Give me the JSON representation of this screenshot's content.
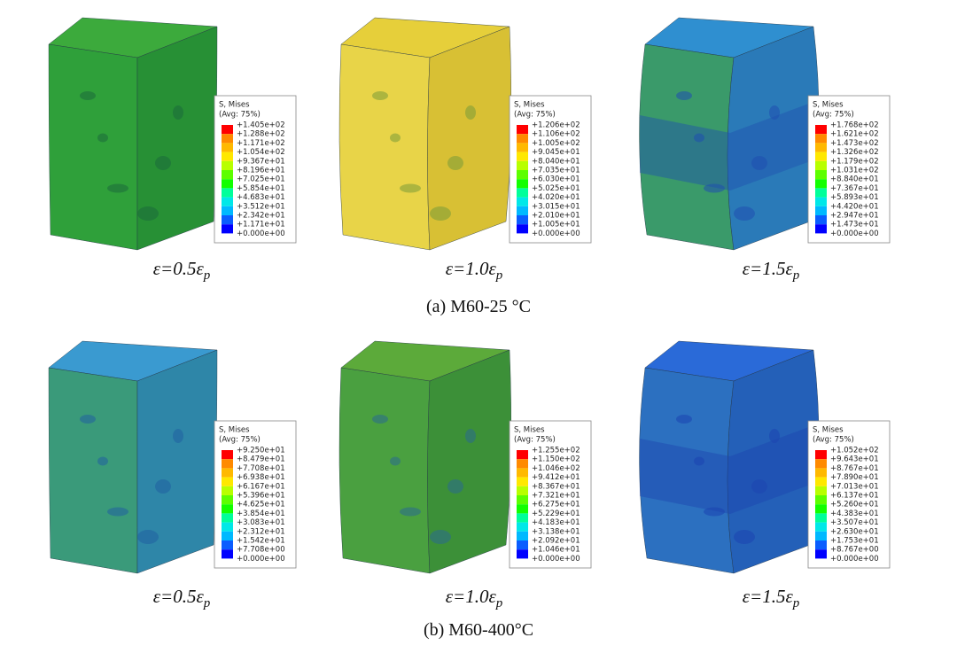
{
  "rows": [
    {
      "caption": "(a) M60-25 °C",
      "panels": [
        {
          "label": "ε=0.5ε",
          "subscript": "p",
          "legend_title": "S, Mises",
          "legend_subtitle": "(Avg: 75%)",
          "levels": [
            "+1.405e+02",
            "+1.288e+02",
            "+1.171e+02",
            "+1.054e+02",
            "+9.367e+01",
            "+8.196e+01",
            "+7.025e+01",
            "+5.854e+01",
            "+4.683e+01",
            "+3.512e+01",
            "+2.342e+01",
            "+1.171e+01",
            "+0.000e+00"
          ]
        },
        {
          "label": "ε=1.0ε",
          "subscript": "p",
          "legend_title": "S, Mises",
          "legend_subtitle": "(Avg: 75%)",
          "levels": [
            "+1.206e+02",
            "+1.106e+02",
            "+1.005e+02",
            "+9.045e+01",
            "+8.040e+01",
            "+7.035e+01",
            "+6.030e+01",
            "+5.025e+01",
            "+4.020e+01",
            "+3.015e+01",
            "+2.010e+01",
            "+1.005e+01",
            "+0.000e+00"
          ]
        },
        {
          "label": "ε=1.5ε",
          "subscript": "p",
          "legend_title": "S, Mises",
          "legend_subtitle": "(Avg: 75%)",
          "levels": [
            "+1.768e+02",
            "+1.621e+02",
            "+1.473e+02",
            "+1.326e+02",
            "+1.179e+02",
            "+1.031e+02",
            "+8.840e+01",
            "+7.367e+01",
            "+5.893e+01",
            "+4.420e+01",
            "+2.947e+01",
            "+1.473e+01",
            "+0.000e+00"
          ]
        }
      ]
    },
    {
      "caption": "(b) M60-400°C",
      "panels": [
        {
          "label": "ε=0.5ε",
          "subscript": "p",
          "legend_title": "S, Mises",
          "legend_subtitle": "(Avg: 75%)",
          "levels": [
            "+9.250e+01",
            "+8.479e+01",
            "+7.708e+01",
            "+6.938e+01",
            "+6.167e+01",
            "+5.396e+01",
            "+4.625e+01",
            "+3.854e+01",
            "+3.083e+01",
            "+2.312e+01",
            "+1.542e+01",
            "+7.708e+00",
            "+0.000e+00"
          ]
        },
        {
          "label": "ε=1.0ε",
          "subscript": "p",
          "legend_title": "S, Mises",
          "legend_subtitle": "(Avg: 75%)",
          "levels": [
            "+1.255e+02",
            "+1.150e+02",
            "+1.046e+02",
            "+9.412e+01",
            "+8.367e+01",
            "+7.321e+01",
            "+6.275e+01",
            "+5.229e+01",
            "+4.183e+01",
            "+3.138e+01",
            "+2.092e+01",
            "+1.046e+01",
            "+0.000e+00"
          ]
        },
        {
          "label": "ε=1.5ε",
          "subscript": "p",
          "legend_title": "S, Mises",
          "legend_subtitle": "(Avg: 75%)",
          "levels": [
            "+1.052e+02",
            "+9.643e+01",
            "+8.767e+01",
            "+7.890e+01",
            "+7.013e+01",
            "+6.137e+01",
            "+5.260e+01",
            "+4.383e+01",
            "+3.507e+01",
            "+2.630e+01",
            "+1.753e+01",
            "+8.767e+00",
            "+0.000e+00"
          ]
        }
      ]
    }
  ]
}
